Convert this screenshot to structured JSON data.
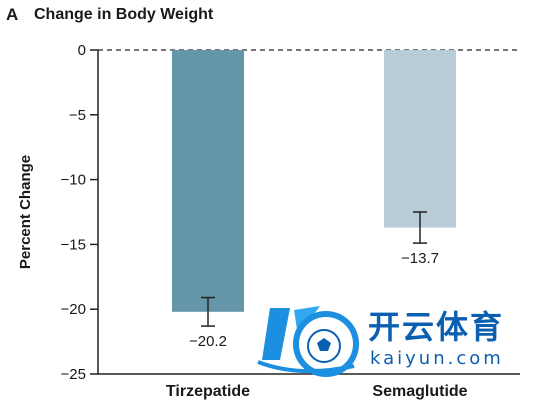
{
  "panel_label": "A",
  "watermark": {
    "cn_text": "开云体育",
    "en_text": "kaiyun.com"
  },
  "chart_data": {
    "type": "bar",
    "title": "Change in Body Weight",
    "xlabel": "",
    "ylabel": "Percent Change",
    "categories": [
      "Tirzepatide",
      "Semaglutide"
    ],
    "values": [
      -20.2,
      -13.7
    ],
    "value_labels": [
      "−20.2",
      "−13.7"
    ],
    "error": [
      1.1,
      1.2
    ],
    "ylim": [
      -25,
      0
    ],
    "yticks": [
      0,
      -5,
      -10,
      -15,
      -20,
      -25
    ],
    "ytick_labels": [
      "0",
      "−5",
      "−10",
      "−15",
      "−20",
      "−25"
    ],
    "bar_colors": [
      "#6595a8",
      "#b8cdd8"
    ],
    "zero_line": "dashed",
    "grid": false
  }
}
